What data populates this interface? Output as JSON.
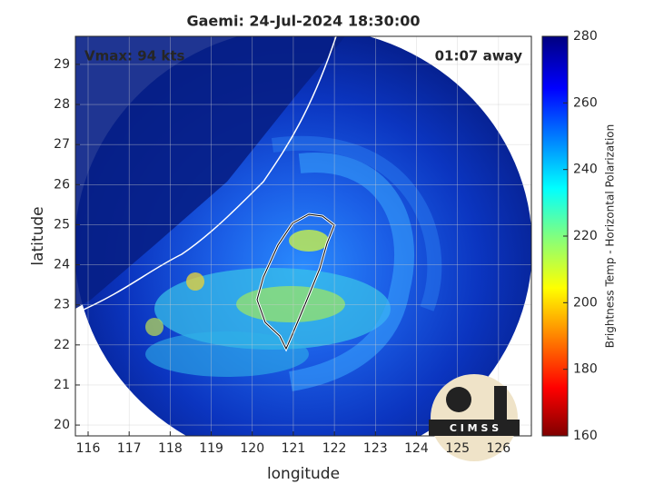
{
  "chart_data": {
    "type": "map",
    "title": "Gaemi: 24-Jul-2024 18:30:00",
    "xlabel": "longitude",
    "ylabel": "latitude",
    "xlim": [
      115.69,
      126.8
    ],
    "xticks": [
      116,
      117,
      118,
      119,
      120,
      121,
      122,
      123,
      124,
      125,
      126
    ],
    "ylim": [
      19.73,
      29.7
    ],
    "yticks": [
      20,
      21,
      22,
      23,
      24,
      25,
      26,
      27,
      28,
      29
    ],
    "grid": true,
    "annotations": [
      "Vmax: 94 kts",
      "01:07 away"
    ],
    "colorbar": {
      "label": "Brightness Temp - Horizontal Polarization",
      "lim": [
        160,
        280
      ],
      "ticks": [
        160,
        180,
        200,
        220,
        240,
        260,
        280
      ]
    },
    "logo": "C I M S S"
  }
}
